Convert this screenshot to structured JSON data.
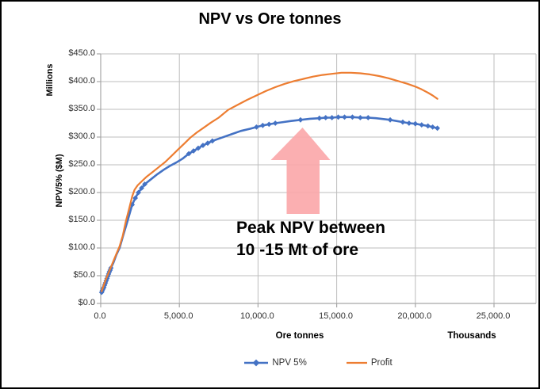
{
  "chart_data": {
    "type": "line",
    "title": "NPV vs Ore tonnes",
    "xlabel": "Ore tonnes",
    "xlabel_units": "Thousands",
    "ylabel": "NPV/5% ($M)",
    "ylabel_units": "Millions",
    "xlim": [
      0,
      25000
    ],
    "ylim": [
      0,
      450
    ],
    "grid": true,
    "legend_position": "bottom",
    "x_tick_values": [
      0,
      5000,
      10000,
      15000,
      20000,
      25000
    ],
    "x_tick_labels": [
      "0.0",
      "5,000.0",
      "10,000.0",
      "15,000.0",
      "20,000.0",
      "25,000.0"
    ],
    "y_tick_values": [
      0,
      50,
      100,
      150,
      200,
      250,
      300,
      350,
      400,
      450
    ],
    "y_tick_labels": [
      "$0.0",
      "$50.0",
      "$100.0",
      "$150.0",
      "$200.0",
      "$250.0",
      "$300.0",
      "$350.0",
      "$400.0",
      "$450.0"
    ],
    "colors": {
      "grid": "#bdbdbd",
      "axis": "#a6a6a6",
      "text": "#303030"
    },
    "series": [
      {
        "name": "NPV 5%",
        "color": "#4472C4",
        "marker": "diamond",
        "points": [
          [
            60,
            20
          ],
          [
            100,
            23
          ],
          [
            150,
            26
          ],
          [
            200,
            29
          ],
          [
            250,
            33
          ],
          [
            300,
            37
          ],
          [
            350,
            41
          ],
          [
            400,
            45
          ],
          [
            450,
            49
          ],
          [
            500,
            53
          ],
          [
            550,
            57
          ],
          [
            600,
            60
          ],
          [
            650,
            64
          ],
          [
            800,
            73
          ],
          [
            1000,
            88
          ],
          [
            1200,
            100
          ],
          [
            1400,
            120
          ],
          [
            1700,
            148
          ],
          [
            2000,
            178
          ],
          [
            2200,
            190
          ],
          [
            2400,
            200
          ],
          [
            2600,
            208
          ],
          [
            2800,
            215
          ],
          [
            3200,
            224
          ],
          [
            3600,
            233
          ],
          [
            4000,
            241
          ],
          [
            4400,
            248
          ],
          [
            4800,
            254
          ],
          [
            5200,
            261
          ],
          [
            5600,
            270
          ],
          [
            5900,
            275
          ],
          [
            6200,
            280
          ],
          [
            6500,
            285
          ],
          [
            6800,
            289
          ],
          [
            7100,
            293
          ],
          [
            7700,
            299
          ],
          [
            8300,
            305
          ],
          [
            8900,
            311
          ],
          [
            9500,
            315
          ],
          [
            9900,
            318
          ],
          [
            10300,
            321
          ],
          [
            10700,
            323
          ],
          [
            11100,
            325
          ],
          [
            11600,
            327
          ],
          [
            12100,
            329
          ],
          [
            12700,
            331
          ],
          [
            13300,
            333
          ],
          [
            13900,
            334
          ],
          [
            14300,
            335
          ],
          [
            14700,
            335
          ],
          [
            15100,
            336
          ],
          [
            15500,
            336
          ],
          [
            16000,
            336
          ],
          [
            16500,
            335
          ],
          [
            17000,
            335
          ],
          [
            17500,
            334
          ],
          [
            18400,
            331
          ],
          [
            19200,
            327
          ],
          [
            19600,
            325
          ],
          [
            20000,
            324
          ],
          [
            20400,
            322
          ],
          [
            20800,
            320
          ],
          [
            21100,
            318
          ],
          [
            21400,
            316
          ]
        ],
        "marker_points": [
          [
            60,
            20
          ],
          [
            100,
            23
          ],
          [
            150,
            26
          ],
          [
            200,
            29
          ],
          [
            250,
            33
          ],
          [
            300,
            37
          ],
          [
            350,
            41
          ],
          [
            400,
            45
          ],
          [
            450,
            49
          ],
          [
            500,
            53
          ],
          [
            550,
            57
          ],
          [
            600,
            60
          ],
          [
            650,
            64
          ],
          [
            2000,
            178
          ],
          [
            2200,
            190
          ],
          [
            2400,
            200
          ],
          [
            2600,
            208
          ],
          [
            2800,
            215
          ],
          [
            5600,
            270
          ],
          [
            5900,
            275
          ],
          [
            6200,
            280
          ],
          [
            6500,
            285
          ],
          [
            6800,
            289
          ],
          [
            7100,
            293
          ],
          [
            9900,
            318
          ],
          [
            10300,
            321
          ],
          [
            10700,
            323
          ],
          [
            11100,
            325
          ],
          [
            12700,
            331
          ],
          [
            13900,
            334
          ],
          [
            14300,
            335
          ],
          [
            14700,
            335
          ],
          [
            15100,
            336
          ],
          [
            15500,
            336
          ],
          [
            16000,
            336
          ],
          [
            16500,
            335
          ],
          [
            17000,
            335
          ],
          [
            18400,
            331
          ],
          [
            19200,
            327
          ],
          [
            19600,
            325
          ],
          [
            20000,
            324
          ],
          [
            20400,
            322
          ],
          [
            20800,
            320
          ],
          [
            21100,
            318
          ],
          [
            21400,
            316
          ]
        ]
      },
      {
        "name": "Profit",
        "color": "#ED7D31",
        "marker": "none",
        "points": [
          [
            60,
            22
          ],
          [
            300,
            42
          ],
          [
            600,
            62
          ],
          [
            900,
            83
          ],
          [
            1200,
            103
          ],
          [
            1400,
            122
          ],
          [
            1600,
            148
          ],
          [
            1800,
            170
          ],
          [
            2000,
            193
          ],
          [
            2150,
            205
          ],
          [
            2350,
            213
          ],
          [
            2600,
            220
          ],
          [
            2900,
            228
          ],
          [
            3300,
            237
          ],
          [
            3700,
            246
          ],
          [
            4100,
            255
          ],
          [
            4500,
            266
          ],
          [
            4900,
            277
          ],
          [
            5300,
            288
          ],
          [
            5700,
            299
          ],
          [
            6100,
            308
          ],
          [
            6500,
            316
          ],
          [
            7000,
            326
          ],
          [
            7500,
            335
          ],
          [
            8100,
            349
          ],
          [
            8700,
            358
          ],
          [
            9300,
            367
          ],
          [
            9900,
            375
          ],
          [
            10500,
            383
          ],
          [
            11100,
            390
          ],
          [
            11700,
            396
          ],
          [
            12300,
            401
          ],
          [
            12900,
            405
          ],
          [
            13500,
            409
          ],
          [
            14100,
            412
          ],
          [
            14700,
            414
          ],
          [
            15300,
            416
          ],
          [
            15900,
            416
          ],
          [
            16500,
            415
          ],
          [
            17100,
            413
          ],
          [
            17700,
            410
          ],
          [
            18300,
            406
          ],
          [
            18900,
            401
          ],
          [
            19500,
            396
          ],
          [
            20000,
            391
          ],
          [
            20400,
            386
          ],
          [
            20800,
            380
          ],
          [
            21100,
            375
          ],
          [
            21400,
            369
          ]
        ],
        "marker_points": []
      }
    ],
    "annotation": {
      "line1": "Peak NPV between",
      "line2": "10 -15 Mt of ore",
      "arrow_color": "#FBA6A8"
    }
  },
  "legend": {
    "items": [
      {
        "label": "NPV 5%",
        "color": "#4472C4",
        "marker": "diamond-line"
      },
      {
        "label": "Profit",
        "color": "#ED7D31",
        "marker": "line"
      }
    ]
  }
}
